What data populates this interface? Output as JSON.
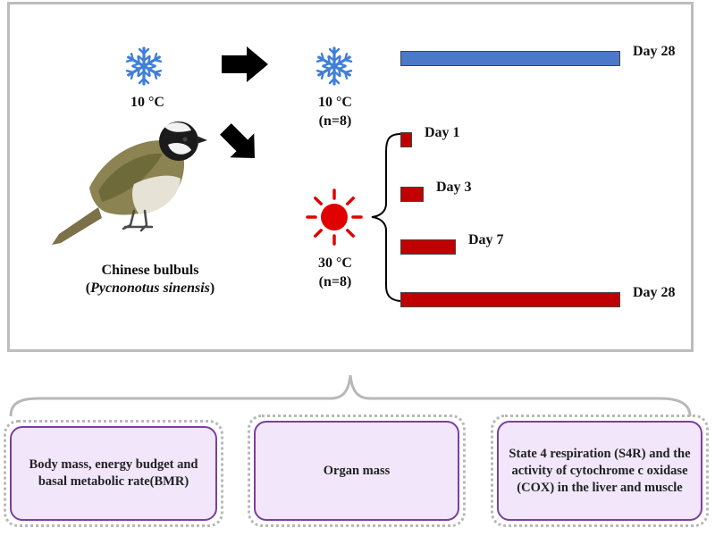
{
  "conditions": {
    "acclimation_temp": "10 °C",
    "cold_group_temp": "10 °C",
    "cold_group_n": "(n=8)",
    "warm_group_temp": "30 °C",
    "warm_group_n": "(n=8)"
  },
  "timepoints": {
    "cold": [
      {
        "label": "Day 28",
        "days": 28
      }
    ],
    "warm": [
      {
        "label": "Day 1",
        "days": 1
      },
      {
        "label": "Day 3",
        "days": 3
      },
      {
        "label": "Day 7",
        "days": 7
      },
      {
        "label": "Day 28",
        "days": 28
      }
    ]
  },
  "species": {
    "common_name": "Chinese bulbuls",
    "scientific_name": "Pycnonotus sinensis"
  },
  "measurements": [
    {
      "label": "Body mass, energy budget and basal metabolic rate(BMR)"
    },
    {
      "label": "Organ mass"
    },
    {
      "label": "State 4 respiration (S4R) and the activity of cytochrome c oxidase (COX) in the liver and muscle"
    }
  ],
  "colors": {
    "cold_bar": "#4b78c8",
    "warm_bar": "#c00000",
    "snowflake": "#3f7fd8",
    "sun": "#e00000",
    "box_border": "#7a3fa0",
    "box_fill": "#f1e6fa"
  },
  "icons": {
    "cold": "snowflake-icon",
    "warm": "sun-icon",
    "bird": "bird-illustration",
    "transfer": "arrow-icon"
  }
}
